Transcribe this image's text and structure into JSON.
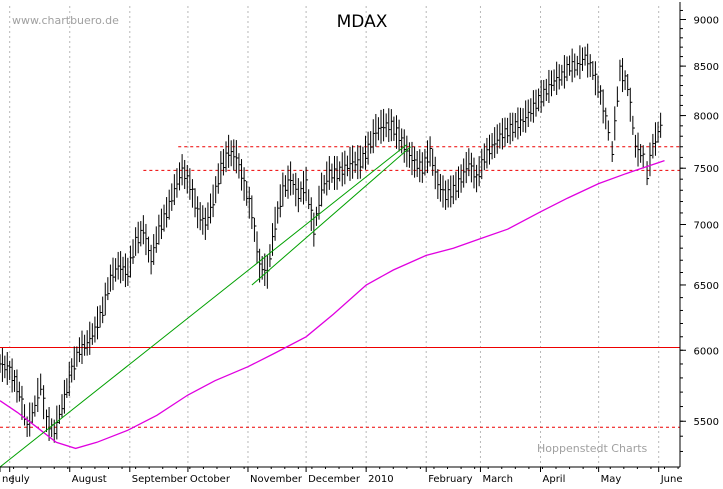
{
  "watermark": "www.chartbuero.de",
  "credit": "Hoppenstedt Charts",
  "colors": {
    "price": "#000000",
    "sma": "#e000e0",
    "trend": "#00a000",
    "support": "#ee0000",
    "grid": "#b8b8b8",
    "axis": "#000000"
  },
  "chart_data": {
    "type": "line",
    "title": "MDAX",
    "y_scale": "log",
    "ylim": [
      5200,
      9150
    ],
    "xlim": [
      "2009-06-26",
      "2010-06-12"
    ],
    "grid": "vertical dotted lines at month starts",
    "y_ticks": [
      {
        "value": 9000,
        "label": "9000"
      },
      {
        "value": 8500,
        "label": "8500"
      },
      {
        "value": 8000,
        "label": "8000"
      },
      {
        "value": 7500,
        "label": "7500"
      },
      {
        "value": 7000,
        "label": "7000"
      },
      {
        "value": 6500,
        "label": "6500"
      },
      {
        "value": 6000,
        "label": "6000"
      },
      {
        "value": 5500,
        "label": "5500"
      }
    ],
    "x_ticks": [
      {
        "date": "2009-06-26",
        "label": "ne"
      },
      {
        "date": "2009-07-01",
        "label": "July"
      },
      {
        "date": "2009-08-01",
        "label": "August"
      },
      {
        "date": "2009-09-01",
        "label": "September"
      },
      {
        "date": "2009-10-01",
        "label": "October"
      },
      {
        "date": "2009-11-01",
        "label": "November"
      },
      {
        "date": "2009-12-01",
        "label": "December"
      },
      {
        "date": "2010-01-01",
        "label": "2010"
      },
      {
        "date": "2010-02-01",
        "label": "February"
      },
      {
        "date": "2010-03-01",
        "label": "March"
      },
      {
        "date": "2010-04-01",
        "label": "April"
      },
      {
        "date": "2010-05-01",
        "label": "May"
      },
      {
        "date": "2010-06-01",
        "label": "June"
      }
    ],
    "series": [
      {
        "kind": "price",
        "points": [
          [
            "2009-06-26",
            5900
          ],
          [
            "2009-07-01",
            5850
          ],
          [
            "2009-07-06",
            5700
          ],
          [
            "2009-07-10",
            5460
          ],
          [
            "2009-07-14",
            5600
          ],
          [
            "2009-07-17",
            5750
          ],
          [
            "2009-07-20",
            5500
          ],
          [
            "2009-07-24",
            5430
          ],
          [
            "2009-07-28",
            5600
          ],
          [
            "2009-08-02",
            5850
          ],
          [
            "2009-08-06",
            6000
          ],
          [
            "2009-08-10",
            6050
          ],
          [
            "2009-08-14",
            6150
          ],
          [
            "2009-08-18",
            6300
          ],
          [
            "2009-08-22",
            6550
          ],
          [
            "2009-08-26",
            6650
          ],
          [
            "2009-08-31",
            6600
          ],
          [
            "2009-09-04",
            6850
          ],
          [
            "2009-09-08",
            6950
          ],
          [
            "2009-09-12",
            6700
          ],
          [
            "2009-09-16",
            6950
          ],
          [
            "2009-09-20",
            7100
          ],
          [
            "2009-09-24",
            7300
          ],
          [
            "2009-09-28",
            7480
          ],
          [
            "2009-10-02",
            7350
          ],
          [
            "2009-10-06",
            7100
          ],
          [
            "2009-10-10",
            7000
          ],
          [
            "2009-10-14",
            7200
          ],
          [
            "2009-10-18",
            7500
          ],
          [
            "2009-10-22",
            7650
          ],
          [
            "2009-10-26",
            7600
          ],
          [
            "2009-10-30",
            7350
          ],
          [
            "2009-11-03",
            7100
          ],
          [
            "2009-11-07",
            6650
          ],
          [
            "2009-11-11",
            6600
          ],
          [
            "2009-11-15",
            7000
          ],
          [
            "2009-11-19",
            7300
          ],
          [
            "2009-11-23",
            7400
          ],
          [
            "2009-11-27",
            7250
          ],
          [
            "2009-12-01",
            7350
          ],
          [
            "2009-12-05",
            6950
          ],
          [
            "2009-12-09",
            7300
          ],
          [
            "2009-12-13",
            7450
          ],
          [
            "2009-12-17",
            7450
          ],
          [
            "2009-12-21",
            7500
          ],
          [
            "2009-12-25",
            7550
          ],
          [
            "2009-12-29",
            7550
          ],
          [
            "2010-01-02",
            7680
          ],
          [
            "2010-01-06",
            7850
          ],
          [
            "2010-01-10",
            7900
          ],
          [
            "2010-01-14",
            7900
          ],
          [
            "2010-01-18",
            7800
          ],
          [
            "2010-01-22",
            7650
          ],
          [
            "2010-01-26",
            7550
          ],
          [
            "2010-01-30",
            7500
          ],
          [
            "2010-02-03",
            7650
          ],
          [
            "2010-02-07",
            7350
          ],
          [
            "2010-02-11",
            7250
          ],
          [
            "2010-02-15",
            7300
          ],
          [
            "2010-02-19",
            7400
          ],
          [
            "2010-02-23",
            7550
          ],
          [
            "2010-02-27",
            7400
          ],
          [
            "2010-03-03",
            7600
          ],
          [
            "2010-03-07",
            7700
          ],
          [
            "2010-03-11",
            7800
          ],
          [
            "2010-03-15",
            7850
          ],
          [
            "2010-03-19",
            7900
          ],
          [
            "2010-03-23",
            7950
          ],
          [
            "2010-03-27",
            8050
          ],
          [
            "2010-03-31",
            8150
          ],
          [
            "2010-04-04",
            8250
          ],
          [
            "2010-04-08",
            8350
          ],
          [
            "2010-04-12",
            8400
          ],
          [
            "2010-04-16",
            8500
          ],
          [
            "2010-04-20",
            8500
          ],
          [
            "2010-04-24",
            8600
          ],
          [
            "2010-04-28",
            8450
          ],
          [
            "2010-05-02",
            8200
          ],
          [
            "2010-05-06",
            7850
          ],
          [
            "2010-05-08",
            7650
          ],
          [
            "2010-05-12",
            8450
          ],
          [
            "2010-05-16",
            8300
          ],
          [
            "2010-05-20",
            7700
          ],
          [
            "2010-05-24",
            7600
          ],
          [
            "2010-05-26",
            7450
          ],
          [
            "2010-05-29",
            7700
          ],
          [
            "2010-06-02",
            7900
          ],
          [
            "2010-06-04",
            8000
          ]
        ]
      },
      {
        "kind": "moving-average",
        "points": [
          [
            "2009-06-26",
            5640
          ],
          [
            "2009-07-05",
            5560
          ],
          [
            "2009-07-15",
            5460
          ],
          [
            "2009-07-25",
            5360
          ],
          [
            "2009-08-04",
            5320
          ],
          [
            "2009-08-15",
            5360
          ],
          [
            "2009-08-31",
            5440
          ],
          [
            "2009-09-15",
            5540
          ],
          [
            "2009-10-01",
            5680
          ],
          [
            "2009-10-15",
            5780
          ],
          [
            "2009-11-01",
            5880
          ],
          [
            "2009-11-15",
            5980
          ],
          [
            "2009-12-01",
            6100
          ],
          [
            "2009-12-15",
            6270
          ],
          [
            "2010-01-01",
            6500
          ],
          [
            "2010-01-15",
            6620
          ],
          [
            "2010-02-01",
            6740
          ],
          [
            "2010-02-15",
            6800
          ],
          [
            "2010-03-01",
            6880
          ],
          [
            "2010-03-15",
            6960
          ],
          [
            "2010-04-01",
            7110
          ],
          [
            "2010-04-15",
            7230
          ],
          [
            "2010-05-01",
            7360
          ],
          [
            "2010-05-15",
            7450
          ],
          [
            "2010-06-04",
            7570
          ]
        ]
      },
      {
        "kind": "trendline",
        "points": [
          [
            "2009-06-26",
            5200
          ],
          [
            "2010-01-22",
            7720
          ]
        ]
      },
      {
        "kind": "trendline",
        "points": [
          [
            "2009-11-03",
            6500
          ],
          [
            "2010-01-24",
            7700
          ]
        ]
      }
    ],
    "horizontal_lines": [
      {
        "value": 6020,
        "style": "solid"
      },
      {
        "value": 7700,
        "style": "dashed",
        "from": "2009-09-26"
      },
      {
        "value": 7480,
        "style": "dashed",
        "from": "2009-09-08"
      },
      {
        "value": 5460,
        "style": "dashed"
      }
    ]
  }
}
